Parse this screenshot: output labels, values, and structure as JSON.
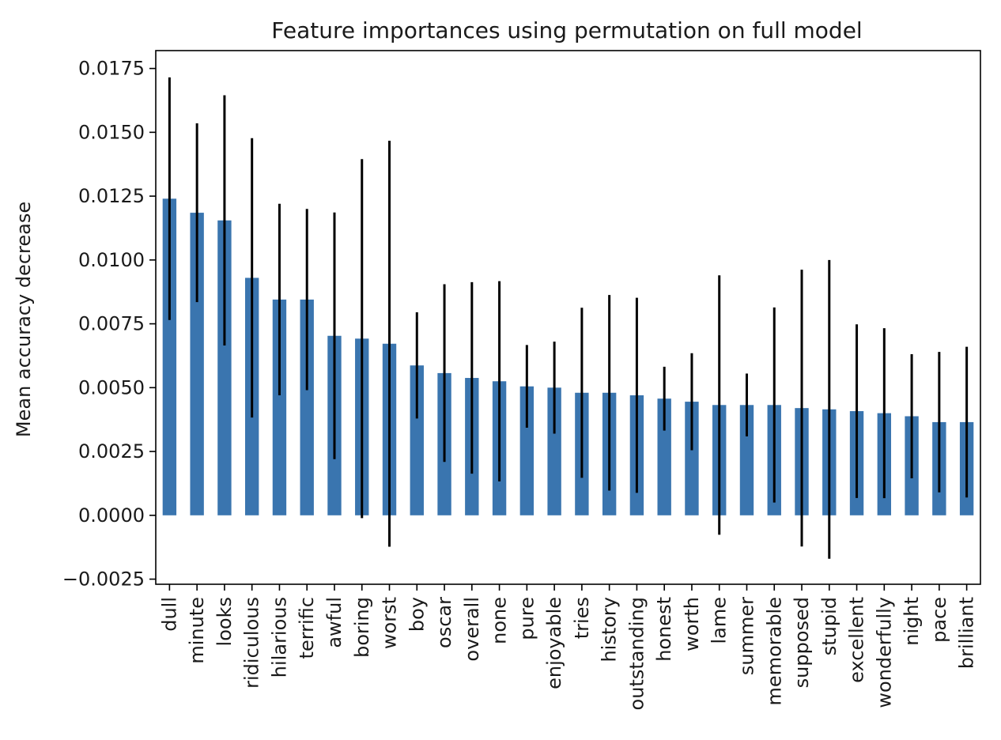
{
  "chart_data": {
    "type": "bar",
    "title": "Feature importances using permutation on full model",
    "xlabel": "",
    "ylabel": "Mean accuracy decrease",
    "ylim": [
      -0.0027,
      0.0182
    ],
    "yticks": [
      -0.0025,
      0.0,
      0.0025,
      0.005,
      0.0075,
      0.01,
      0.0125,
      0.015,
      0.0175
    ],
    "ytick_labels": [
      "−0.0025",
      "0.0000",
      "0.0025",
      "0.0050",
      "0.0075",
      "0.0100",
      "0.0125",
      "0.0150",
      "0.0175"
    ],
    "grid": false,
    "bar_color": "#3a75af",
    "errorbar_color": "#000000",
    "categories": [
      "dull",
      "minute",
      "looks",
      "ridiculous",
      "hilarious",
      "terrific",
      "awful",
      "boring",
      "worst",
      "boy",
      "oscar",
      "overall",
      "none",
      "pure",
      "enjoyable",
      "tries",
      "history",
      "outstanding",
      "honest",
      "worth",
      "lame",
      "summer",
      "memorable",
      "supposed",
      "stupid",
      "excellent",
      "wonderfully",
      "night",
      "pace",
      "brilliant"
    ],
    "values": [
      0.0124,
      0.01185,
      0.01155,
      0.0093,
      0.00845,
      0.00845,
      0.00703,
      0.00692,
      0.00672,
      0.00587,
      0.00557,
      0.00538,
      0.00525,
      0.00505,
      0.005,
      0.0048,
      0.0048,
      0.0047,
      0.00457,
      0.00445,
      0.00432,
      0.00432,
      0.00432,
      0.0042,
      0.00415,
      0.00408,
      0.004,
      0.00388,
      0.00365,
      0.00365
    ],
    "errors": [
      0.00475,
      0.0035,
      0.0049,
      0.00547,
      0.00375,
      0.00355,
      0.00483,
      0.00703,
      0.00795,
      0.00208,
      0.00348,
      0.00375,
      0.00392,
      0.00162,
      0.0018,
      0.00333,
      0.00383,
      0.00382,
      0.00125,
      0.0019,
      0.00508,
      0.00123,
      0.00382,
      0.00542,
      0.00585,
      0.0034,
      0.00333,
      0.00243,
      0.00275,
      0.00295
    ]
  }
}
